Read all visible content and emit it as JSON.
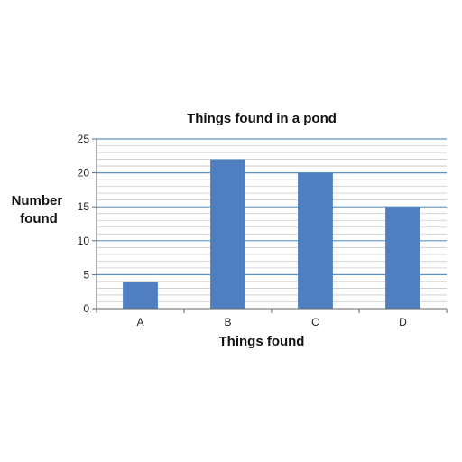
{
  "chart_data": {
    "type": "bar",
    "title": "Things found in a pond",
    "xlabel": "Things found",
    "ylabel": [
      "Number",
      "found"
    ],
    "categories": [
      "A",
      "B",
      "C",
      "D"
    ],
    "values": [
      4,
      22,
      20,
      15
    ],
    "ylim": [
      0,
      25
    ],
    "yticks": [
      0,
      5,
      10,
      15,
      20,
      25
    ],
    "minor_step": 1,
    "grid": true,
    "legend": "none",
    "colors": {
      "bar": "#4f7fc1",
      "major_grid": "#5b93c9",
      "minor_grid": "#c8c8c8",
      "axis": "#666666"
    }
  }
}
